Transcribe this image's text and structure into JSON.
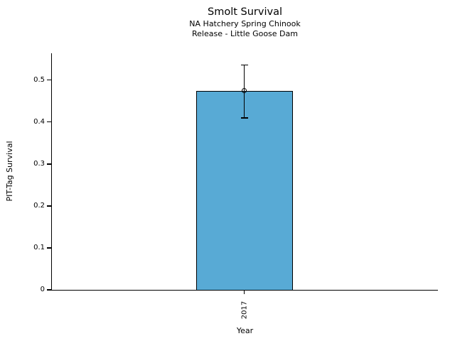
{
  "chart_data": {
    "type": "bar",
    "title": "Smolt Survival",
    "subtitle_line1": "NA Hatchery Spring Chinook",
    "subtitle_line2": "Release - Little Goose Dam",
    "xlabel": "Year",
    "ylabel": "PIT-Tag Survival",
    "categories": [
      "2017"
    ],
    "values": [
      0.475
    ],
    "error_low": [
      0.41
    ],
    "error_high": [
      0.536
    ],
    "yticks": [
      {
        "value": 0,
        "label": "0"
      },
      {
        "value": 0.1,
        "label": "0.1"
      },
      {
        "value": 0.2,
        "label": "0.2"
      },
      {
        "value": 0.3,
        "label": "0.3"
      },
      {
        "value": 0.4,
        "label": "0.4"
      },
      {
        "value": 0.5,
        "label": "0.5"
      }
    ],
    "ylim": [
      0,
      0.564
    ],
    "grid": false,
    "legend": "none",
    "marker": "open-circle",
    "colors": {
      "bar_fill": "#58AAD5",
      "bar_edge": "#000000",
      "axis": "#000000",
      "text": "#000000",
      "background": "#ffffff"
    }
  }
}
